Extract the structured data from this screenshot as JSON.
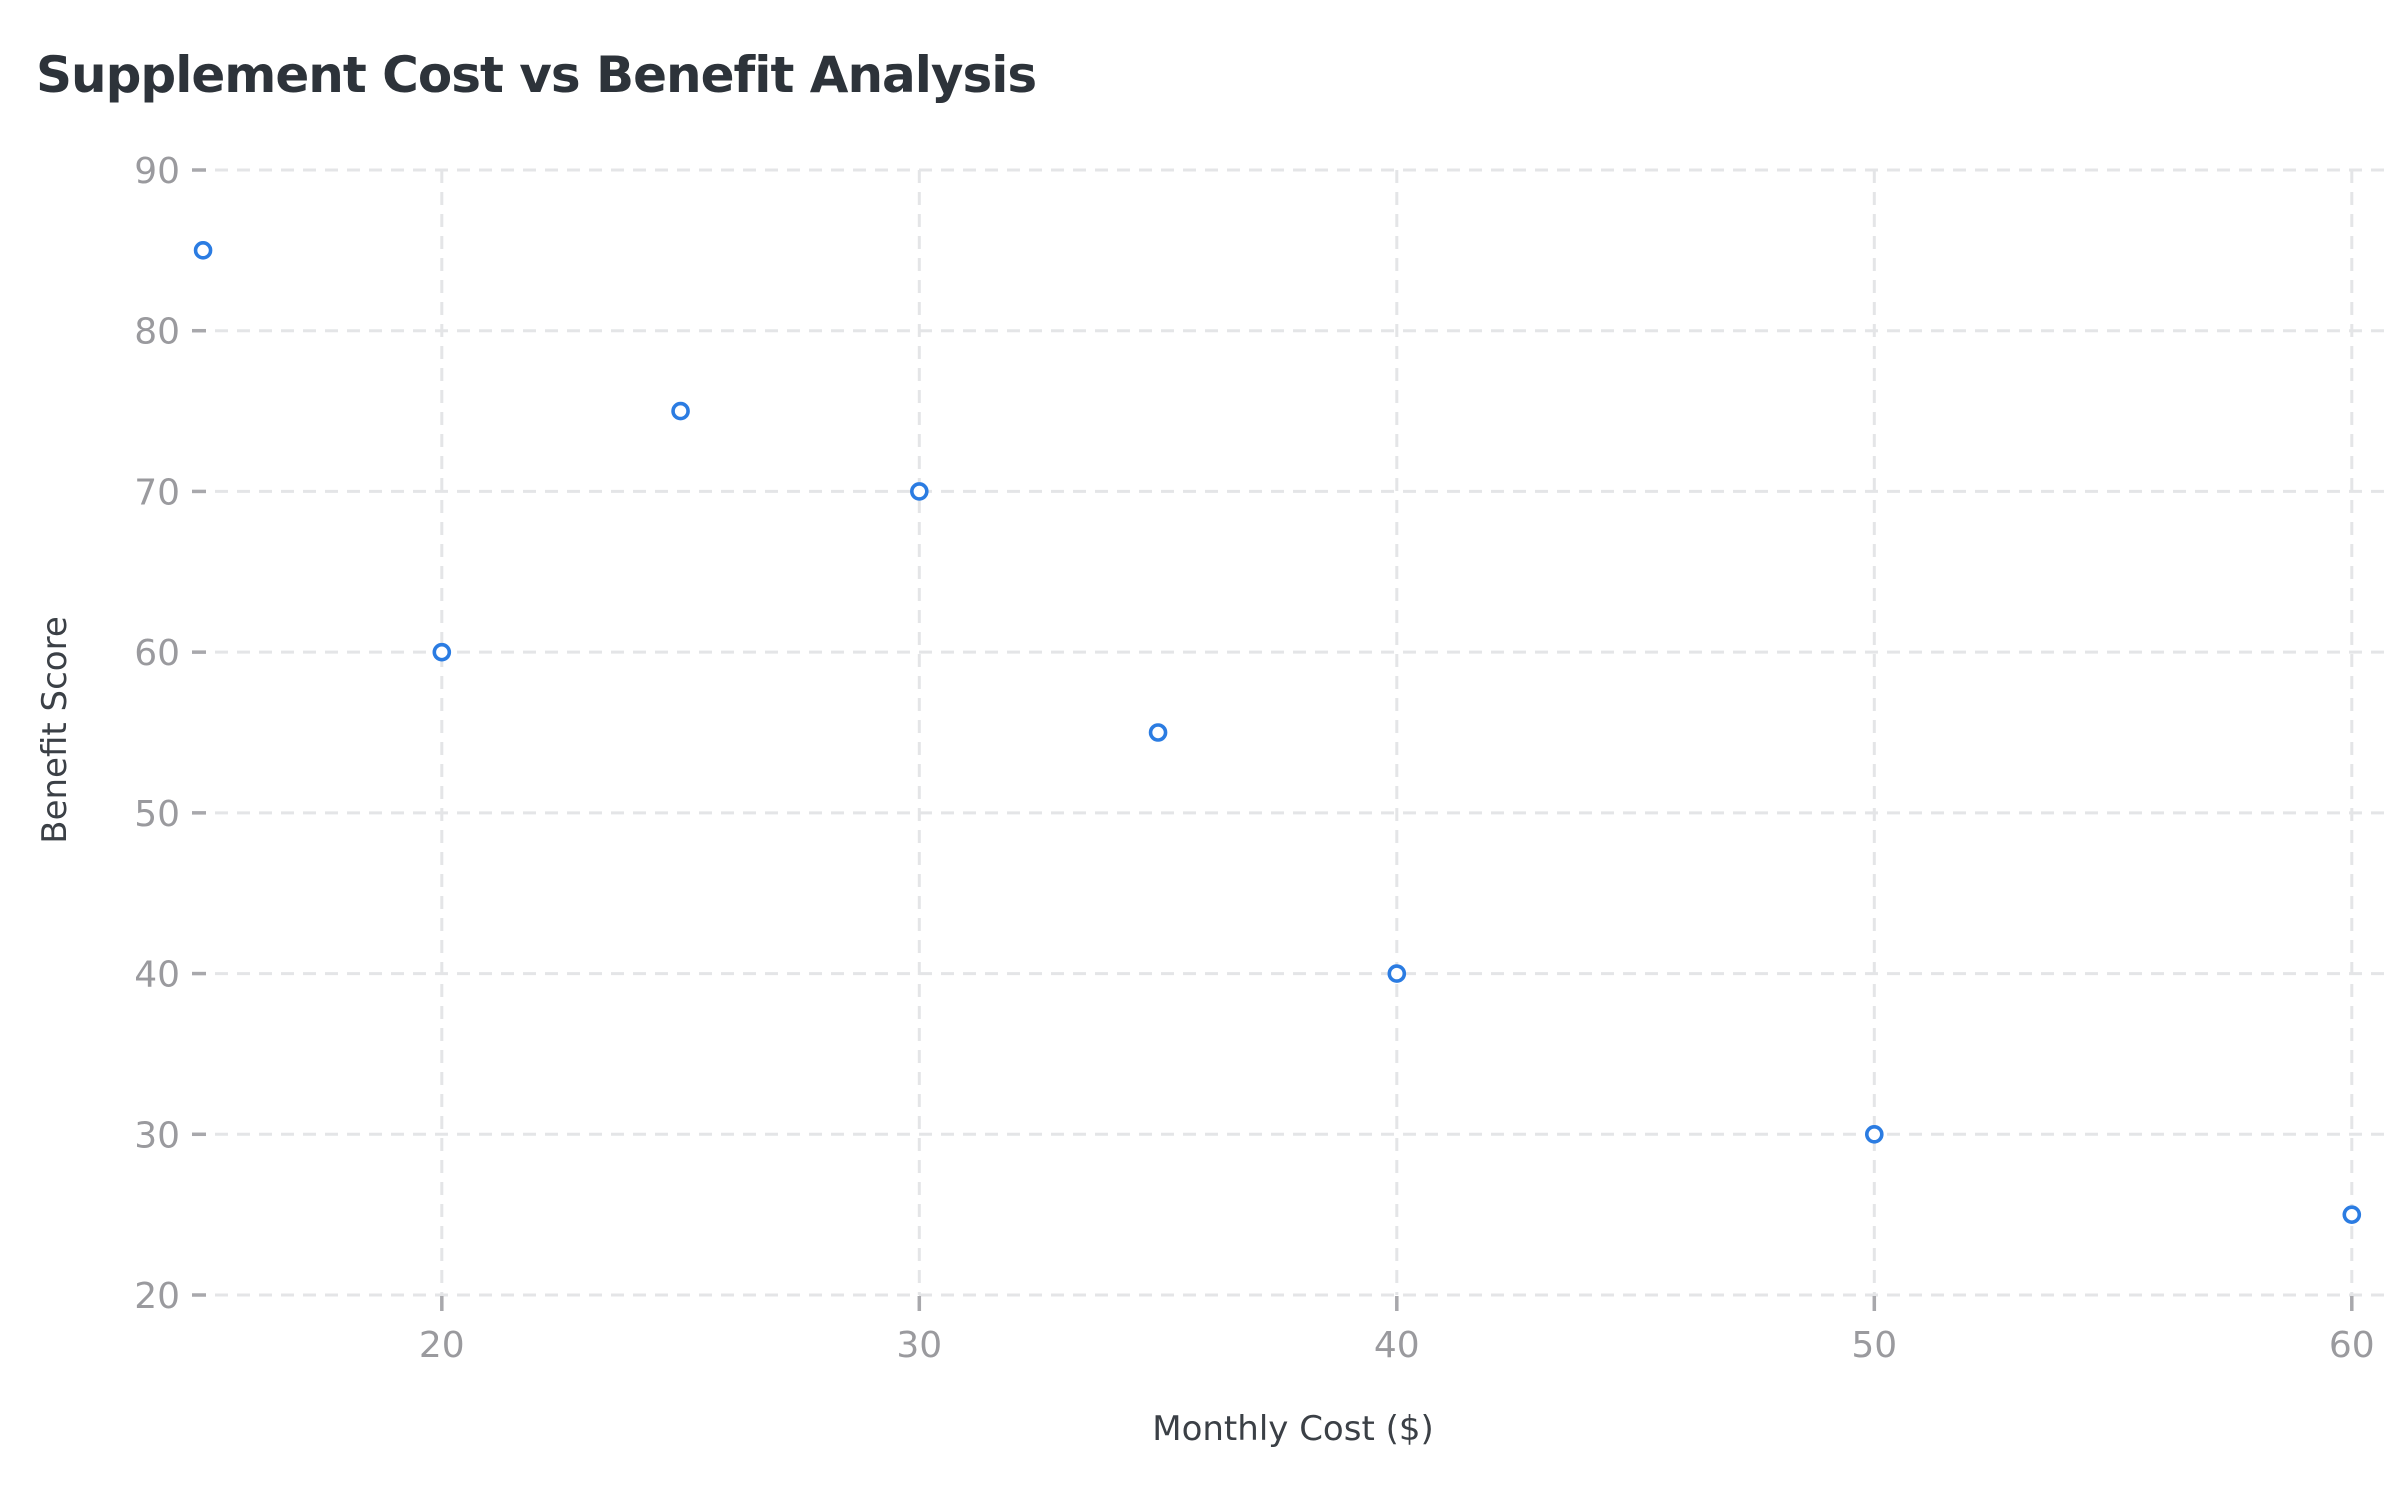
{
  "chart_data": {
    "type": "scatter",
    "title": "Supplement Cost vs Benefit Analysis",
    "xlabel": "Monthly Cost ($)",
    "ylabel": "Benefit Score",
    "x_ticks": [
      20,
      30,
      40,
      50,
      60
    ],
    "y_ticks": [
      20,
      30,
      40,
      50,
      60,
      70,
      80,
      90
    ],
    "xlim": [
      15.25,
      60.8
    ],
    "ylim": [
      20,
      90
    ],
    "grid": "dashed-both-axes",
    "legend": "none",
    "marker": {
      "shape": "open-circle",
      "icon": "circle-marker-icon"
    },
    "points": [
      {
        "x": 15,
        "y": 85
      },
      {
        "x": 20,
        "y": 60
      },
      {
        "x": 25,
        "y": 75
      },
      {
        "x": 30,
        "y": 70
      },
      {
        "x": 35,
        "y": 55
      },
      {
        "x": 40,
        "y": 40
      },
      {
        "x": 50,
        "y": 30
      },
      {
        "x": 60,
        "y": 25
      }
    ]
  },
  "colors": {
    "background": "#ffffff",
    "title": "#2d333a",
    "axis_label": "#3b4046",
    "tick_label": "#9a9a9e",
    "tick_mark": "#a8a8ac",
    "gridline": "#e4e5e7",
    "point_stroke": "#2b7ce2",
    "point_fill": "#ffffff"
  }
}
